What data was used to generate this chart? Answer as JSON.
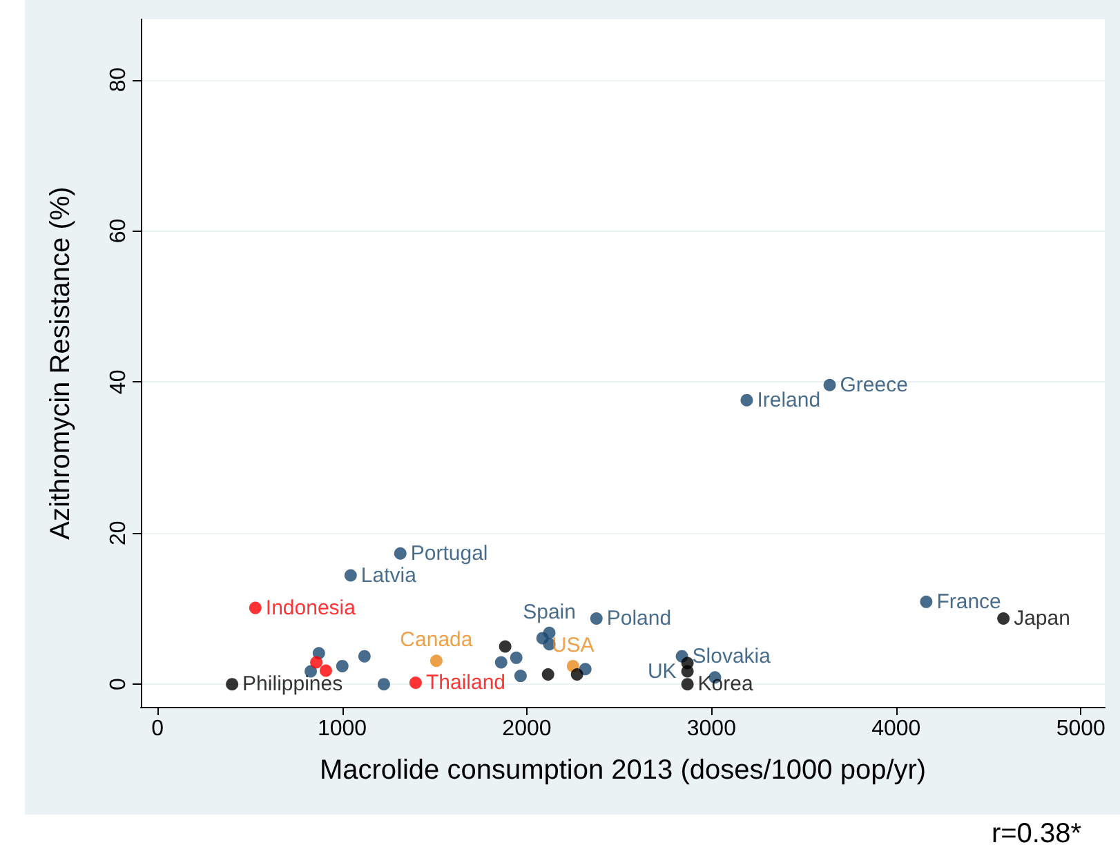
{
  "chart_data": {
    "type": "scatter",
    "xlabel": "Macrolide consumption 2013 (doses/1000 pop/yr)",
    "ylabel": "Azithromycin Resistance (%)",
    "xlim": [
      -90,
      5130
    ],
    "xticks": [
      0,
      1000,
      2000,
      3000,
      4000,
      5000
    ],
    "ylim": [
      -3,
      88
    ],
    "yticks": [
      0,
      20,
      40,
      60,
      80
    ],
    "grid": "y",
    "marker": "circle",
    "series": [
      {
        "color": "#1a476f",
        "x": [
          3640,
          3191,
          1315,
          1046,
          4163,
          2377,
          2085,
          2122,
          2122,
          2840,
          3019,
          1861,
          1943,
          1966,
          2317,
          874,
          830,
          1001,
          1121,
          1226
        ],
        "values": [
          39.6,
          37.6,
          17.3,
          14.4,
          10.9,
          8.7,
          6.1,
          6.8,
          5.3,
          3.7,
          0.9,
          2.9,
          3.5,
          1.1,
          2.0,
          4.1,
          1.7,
          2.4,
          3.7,
          0
        ],
        "value_labels": [
          "Greece",
          "Ireland",
          "Portugal",
          "Latvia",
          "France",
          "Poland",
          null,
          "Spain",
          null,
          "Slovakia",
          null,
          null,
          null,
          null,
          null,
          null,
          null,
          null,
          null,
          null
        ]
      },
      {
        "color": "#ff0000",
        "x": [
          530,
          1398,
          860,
          912
        ],
        "values": [
          10.1,
          0.2,
          2.9,
          1.8
        ],
        "value_labels": [
          "Indonesia",
          "Thailand",
          null,
          null
        ]
      },
      {
        "color": "#e8891c",
        "x": [
          1510,
          2250
        ],
        "values": [
          3.1,
          2.4
        ],
        "value_labels": [
          "Canada",
          "USA"
        ]
      },
      {
        "color": "#000000",
        "x": [
          4581,
          404,
          2870,
          2870,
          2870,
          1883,
          2115,
          2272
        ],
        "values": [
          8.7,
          0,
          2.8,
          1.7,
          0,
          5.0,
          1.3,
          1.3
        ],
        "value_labels": [
          "Japan",
          "Philippines",
          null,
          null,
          "Korea",
          null,
          null,
          null
        ]
      }
    ],
    "annotations": [
      {
        "text": "UK",
        "x": 2870,
        "y": 1.7
      },
      "r=0.38*"
    ]
  }
}
